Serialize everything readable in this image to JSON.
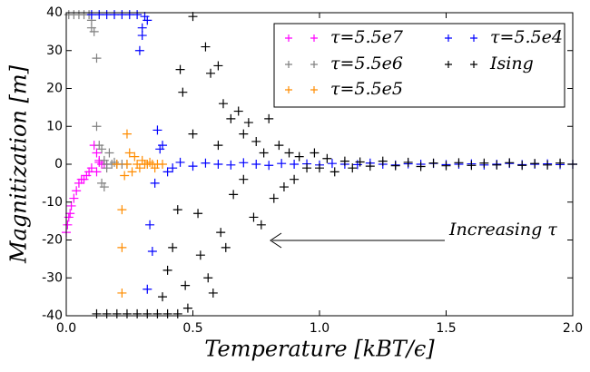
{
  "chart_data": {
    "type": "scatter",
    "xlabel": "Temperature [kBT/ϵ]",
    "ylabel": "Magnitization [m]",
    "annotation": "Increasing τ",
    "xlim": [
      0,
      2
    ],
    "ylim": [
      -40,
      40
    ],
    "xticks": [
      {
        "value": 0,
        "label": "0.0"
      },
      {
        "value": 0.5,
        "label": "0.5"
      },
      {
        "value": 1,
        "label": "1.0"
      },
      {
        "value": 1.5,
        "label": "1.5"
      },
      {
        "value": 2,
        "label": "2.0"
      }
    ],
    "yticks": [
      -40,
      -30,
      -20,
      -10,
      0,
      10,
      20,
      30,
      40
    ],
    "legend": "upper right",
    "series": [
      {
        "name": "τ=5.5e7",
        "color": "#ff00ff",
        "x": [
          0,
          0.005,
          0.01,
          0.015,
          0.02,
          0.03,
          0.04,
          0.05,
          0.06,
          0.07,
          0.08,
          0.09,
          0.1,
          0.11,
          0.12,
          0.12,
          0.13,
          0.13,
          0.14,
          0.15
        ],
        "values": [
          -18,
          -16,
          -14,
          -13,
          -11,
          -9,
          -7,
          -5,
          -4,
          -4,
          -3,
          -2,
          -1,
          5,
          3,
          -2,
          1,
          0.5,
          0,
          0
        ]
      },
      {
        "name": "τ=5.5e6",
        "color": "#808080",
        "x": [
          0.01,
          0.03,
          0.05,
          0.07,
          0.09,
          0.1,
          0.1,
          0.11,
          0.12,
          0.12,
          0.13,
          0.14,
          0.15,
          0.14,
          0.15,
          0.16,
          0.18,
          0.2,
          0.22,
          0.24,
          0.16,
          0.17,
          0.19
        ],
        "values": [
          39.5,
          39.5,
          39.5,
          39.5,
          39.5,
          38,
          36,
          35,
          28,
          10,
          5,
          4,
          1,
          -5,
          -6,
          0,
          0,
          0,
          0,
          0,
          -1,
          3,
          0.5
        ]
      },
      {
        "name": "τ=5.5e5",
        "color": "#ff8c00",
        "x": [
          0.2,
          0.22,
          0.22,
          0.22,
          0.24,
          0.24,
          0.25,
          0.26,
          0.27,
          0.28,
          0.29,
          0.3,
          0.31,
          0.32,
          0.33,
          0.34,
          0.36,
          0.23,
          0.35,
          0.38
        ],
        "values": [
          0,
          -12,
          -22,
          -34,
          8,
          0,
          3,
          -2,
          2,
          0,
          -1,
          1,
          0,
          0,
          0.5,
          0,
          0,
          -3,
          -1,
          0
        ]
      },
      {
        "name": "τ=5.5e4",
        "color": "#0000ff",
        "x": [
          0.1,
          0.13,
          0.16,
          0.19,
          0.22,
          0.25,
          0.28,
          0.3,
          0.3,
          0.29,
          0.31,
          0.32,
          0.36,
          0.37,
          0.38,
          0.33,
          0.34,
          0.32,
          0.35,
          0.4,
          0.42,
          0.45,
          0.5,
          0.55,
          0.6,
          0.65,
          0.7,
          0.75,
          0.8,
          0.85,
          0.9,
          0.95,
          1.0,
          1.05,
          1.1,
          1.15,
          1.2,
          1.25,
          1.3,
          1.35,
          1.4,
          1.45,
          1.5,
          1.55,
          1.6,
          1.65,
          1.7,
          1.75,
          1.8,
          1.85,
          1.9,
          1.95,
          2.0
        ],
        "values": [
          39.5,
          39.5,
          39.5,
          39.5,
          39.5,
          39.5,
          39.5,
          36,
          34,
          30,
          39,
          38,
          9,
          4,
          5,
          -16,
          -23,
          -33,
          -5,
          -2,
          -1,
          0.5,
          -0.5,
          0.3,
          0,
          -0.2,
          0.4,
          0,
          -0.3,
          0.2,
          0,
          0.1,
          -0.2,
          0.2,
          0,
          -0.1,
          0.3,
          0,
          -0.2,
          0.1,
          0,
          0.2,
          -0.1,
          0,
          0.1,
          -0.2,
          0,
          0.2,
          -0.1,
          0,
          0.1,
          -0.1,
          0
        ]
      },
      {
        "name": "Ising",
        "color": "#000000",
        "x": [
          0.12,
          0.16,
          0.2,
          0.24,
          0.28,
          0.32,
          0.36,
          0.4,
          0.44,
          0.38,
          0.4,
          0.42,
          0.44,
          0.45,
          0.46,
          0.47,
          0.48,
          0.5,
          0.5,
          0.52,
          0.53,
          0.55,
          0.56,
          0.57,
          0.58,
          0.6,
          0.6,
          0.61,
          0.62,
          0.63,
          0.65,
          0.66,
          0.68,
          0.7,
          0.7,
          0.72,
          0.74,
          0.75,
          0.77,
          0.78,
          0.8,
          0.82,
          0.84,
          0.86,
          0.88,
          0.9,
          0.92,
          0.95,
          0.98,
          1.0,
          1.03,
          1.06,
          1.1,
          1.13,
          1.16,
          1.2,
          1.25,
          1.3,
          1.35,
          1.4,
          1.45,
          1.5,
          1.55,
          1.6,
          1.65,
          1.7,
          1.75,
          1.8,
          1.85,
          1.9,
          1.95,
          2.0
        ],
        "values": [
          -39.5,
          -39.5,
          -39.5,
          -39.5,
          -39.5,
          -39.5,
          -39.5,
          -39.5,
          -39.5,
          -35,
          -28,
          -22,
          -12,
          25,
          19,
          -32,
          -38,
          39,
          8,
          -13,
          -24,
          31,
          -30,
          24,
          -34,
          26,
          5,
          -18,
          16,
          -22,
          12,
          -8,
          14,
          8,
          -4,
          11,
          -14,
          6,
          -16,
          3,
          12,
          -9,
          5,
          -6,
          3,
          -4,
          2,
          -1,
          3,
          -1,
          1.5,
          -2,
          0.8,
          -1,
          0.6,
          -0.5,
          0.8,
          -0.4,
          0.5,
          -0.6,
          0.3,
          -0.4,
          0.4,
          -0.3,
          0.3,
          -0.2,
          0.4,
          -0.3,
          0.2,
          -0.2,
          0.3,
          0
        ]
      }
    ]
  }
}
